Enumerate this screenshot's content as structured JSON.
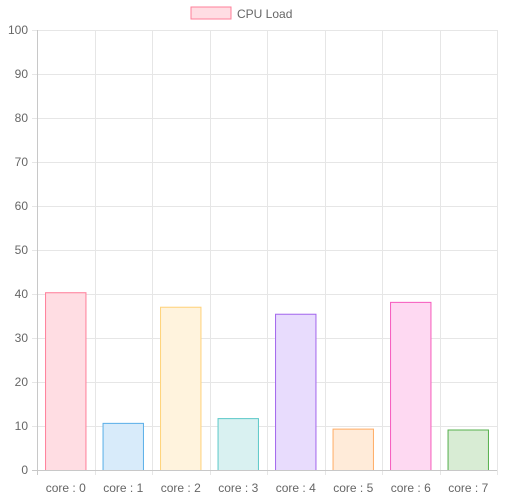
{
  "chart_data": {
    "type": "bar",
    "categories": [
      "core : 0",
      "core : 1",
      "core : 2",
      "core : 3",
      "core : 4",
      "core : 5",
      "core : 6",
      "core : 7"
    ],
    "series": [
      {
        "name": "CPU Load",
        "values": [
          40.4,
          10.7,
          37.1,
          11.8,
          35.5,
          9.4,
          38.2,
          9.2
        ]
      }
    ],
    "ylim": [
      0,
      100
    ],
    "yticks": [
      0,
      10,
      20,
      30,
      40,
      50,
      60,
      70,
      80,
      90,
      100
    ],
    "grid": true,
    "legend": "top-center",
    "legend_color": {
      "fill": "#ffdde3",
      "stroke": "#ff7f9a"
    },
    "bar_colors": [
      {
        "fill": "#ffdde3",
        "stroke": "#ff7f9a"
      },
      {
        "fill": "#d8ebfa",
        "stroke": "#5aaee8"
      },
      {
        "fill": "#fff3dd",
        "stroke": "#ffd27a"
      },
      {
        "fill": "#d9f1f1",
        "stroke": "#5ec9c9"
      },
      {
        "fill": "#e8dcfd",
        "stroke": "#a367ed"
      },
      {
        "fill": "#ffebd9",
        "stroke": "#ffad66"
      },
      {
        "fill": "#fed9f2",
        "stroke": "#f65bbd"
      },
      {
        "fill": "#d8ecd4",
        "stroke": "#56b04d"
      }
    ]
  }
}
